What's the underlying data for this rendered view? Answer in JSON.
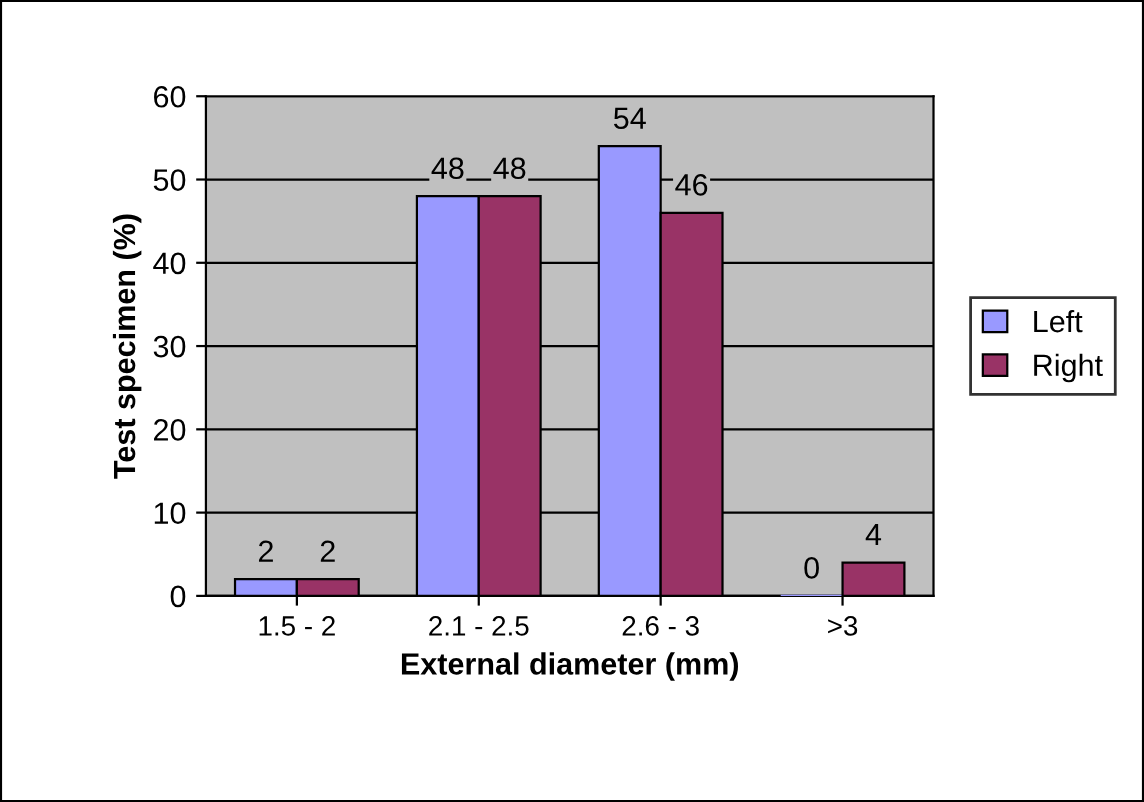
{
  "chart_data": {
    "type": "bar",
    "xlabel": "External diameter (mm)",
    "ylabel": "Test specimen (%)",
    "categories": [
      "1.5 - 2",
      "2.1 - 2.5",
      "2.6 - 3",
      ">3"
    ],
    "series": [
      {
        "name": "Left",
        "color": "#9999ff",
        "values": [
          2,
          48,
          54,
          0
        ]
      },
      {
        "name": "Right",
        "color": "#993366",
        "values": [
          2,
          48,
          46,
          4
        ]
      }
    ],
    "ylim": [
      0,
      60
    ],
    "yticks": [
      0,
      10,
      20,
      30,
      40,
      50,
      60
    ],
    "grid": "y",
    "legend": "right",
    "data_labels": true
  }
}
